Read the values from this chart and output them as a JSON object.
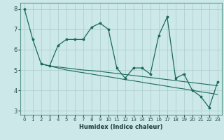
{
  "xlabel": "Humidex (Indice chaleur)",
  "bg_color": "#cce8e8",
  "grid_color": "#aacccc",
  "line_color": "#1a6b5a",
  "xlim": [
    -0.5,
    23.5
  ],
  "ylim": [
    2.8,
    8.3
  ],
  "xticks": [
    0,
    1,
    2,
    3,
    4,
    5,
    6,
    7,
    8,
    9,
    10,
    11,
    12,
    13,
    14,
    15,
    16,
    17,
    18,
    19,
    20,
    21,
    22,
    23
  ],
  "yticks": [
    3,
    4,
    5,
    6,
    7,
    8
  ],
  "curve1_x": [
    0,
    1,
    2,
    3,
    4,
    5,
    6,
    7,
    8,
    9,
    10,
    11,
    12,
    13,
    14,
    15,
    16,
    17,
    18,
    19,
    20,
    21,
    22,
    23
  ],
  "curve1_y": [
    8.0,
    6.5,
    5.3,
    5.2,
    6.2,
    6.5,
    6.5,
    6.5,
    7.1,
    7.3,
    7.0,
    5.1,
    4.6,
    5.1,
    5.1,
    4.8,
    6.7,
    7.6,
    4.6,
    4.8,
    4.0,
    3.7,
    3.15,
    4.4
  ],
  "curve2_x": [
    2,
    3,
    4,
    5,
    6,
    7,
    8,
    9,
    10,
    11,
    12,
    13,
    14,
    15,
    16,
    17,
    18,
    19,
    20,
    21,
    22,
    23
  ],
  "curve2_y": [
    5.3,
    5.2,
    5.15,
    5.1,
    5.05,
    5.0,
    4.97,
    4.93,
    4.88,
    4.83,
    4.78,
    4.73,
    4.68,
    4.63,
    4.58,
    4.53,
    4.48,
    4.43,
    4.38,
    4.33,
    4.28,
    4.23
  ],
  "curve3_x": [
    2,
    3,
    4,
    5,
    6,
    7,
    8,
    9,
    10,
    11,
    12,
    13,
    14,
    15,
    16,
    17,
    18,
    19,
    20,
    21,
    22,
    23
  ],
  "curve3_y": [
    5.3,
    5.2,
    5.1,
    5.0,
    4.93,
    4.87,
    4.8,
    4.73,
    4.67,
    4.6,
    4.53,
    4.47,
    4.4,
    4.33,
    4.27,
    4.2,
    4.13,
    4.07,
    4.0,
    3.93,
    3.87,
    3.8
  ]
}
